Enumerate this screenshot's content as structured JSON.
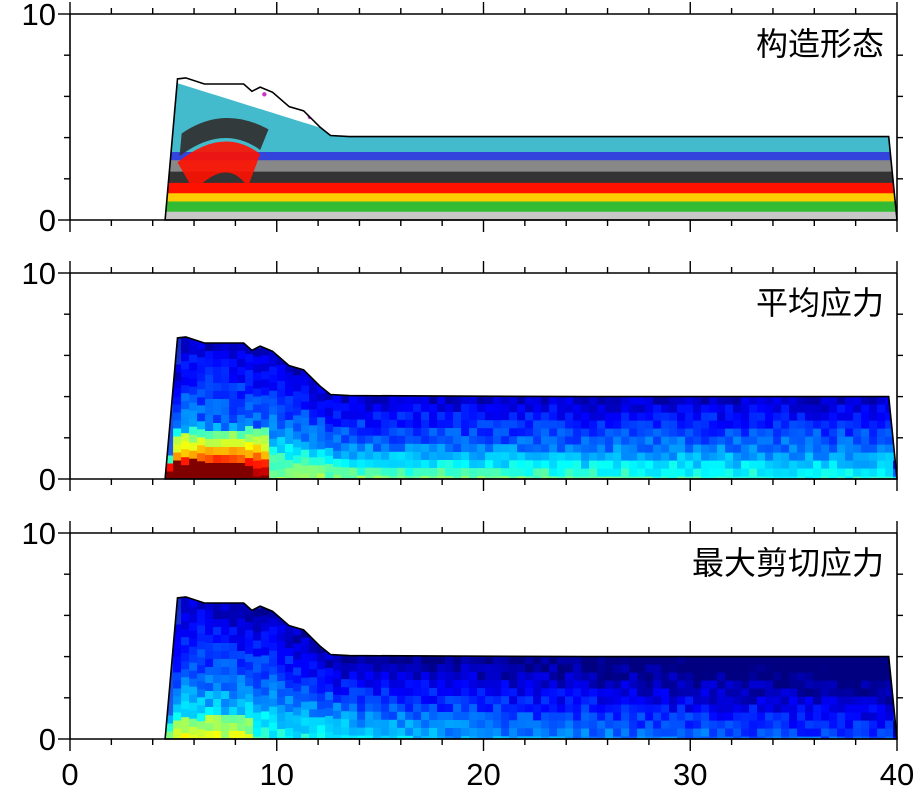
{
  "chart_data": [
    {
      "type": "heatmap",
      "title": "构造形态",
      "xlim": [
        0,
        40
      ],
      "ylim": [
        0,
        10
      ],
      "yticks": [
        "0",
        "10"
      ],
      "xtick_labels_shown": false,
      "colormap": "layered",
      "layer_colors": [
        "#c8c8c8",
        "#33bb33",
        "#ffcc00",
        "#ff1100",
        "#333333",
        "#888888",
        "#3344dd",
        "#44bbcc"
      ],
      "accent_color": "#cc33cc",
      "surface_profile": {
        "x": [
          4.6,
          5.2,
          5.6,
          6.5,
          8.4,
          8.8,
          9.2,
          9.8,
          10.6,
          11.3,
          12.1,
          12.6,
          13.5,
          25,
          35,
          39.6,
          39.8,
          40
        ],
        "y": [
          0,
          6.85,
          6.9,
          6.6,
          6.6,
          6.25,
          6.45,
          6.2,
          5.5,
          5.3,
          4.5,
          4.1,
          4.05,
          4.05,
          4.05,
          4.05,
          2.0,
          0
        ]
      }
    },
    {
      "type": "heatmap",
      "title": "平均应力",
      "xlim": [
        0,
        40
      ],
      "ylim": [
        0,
        10
      ],
      "yticks": [
        "0",
        "10"
      ],
      "xtick_labels_shown": false,
      "colormap": "jet",
      "surface_profile": {
        "x": [
          4.6,
          5.2,
          5.6,
          6.5,
          8.4,
          8.8,
          9.2,
          9.8,
          10.6,
          11.3,
          12.1,
          12.6,
          13.5,
          25,
          35,
          39.6,
          39.8,
          40
        ],
        "y": [
          0,
          6.85,
          6.9,
          6.6,
          6.6,
          6.25,
          6.45,
          6.2,
          5.5,
          5.3,
          4.5,
          4.1,
          4.05,
          4.0,
          4.0,
          4.0,
          2.0,
          0
        ]
      }
    },
    {
      "type": "heatmap",
      "title": "最大剪切应力",
      "xlim": [
        0,
        40
      ],
      "ylim": [
        0,
        10
      ],
      "yticks": [
        "0",
        "10"
      ],
      "xticks": [
        "0",
        "10",
        "20",
        "30",
        "40"
      ],
      "xtick_labels_shown": true,
      "colormap": "jet",
      "surface_profile": {
        "x": [
          4.6,
          5.2,
          5.6,
          6.5,
          8.4,
          8.8,
          9.2,
          9.8,
          10.6,
          11.3,
          12.1,
          12.6,
          13.5,
          25,
          35,
          39.6,
          39.8,
          40
        ],
        "y": [
          0,
          6.85,
          6.9,
          6.6,
          6.6,
          6.25,
          6.45,
          6.2,
          5.5,
          5.3,
          4.5,
          4.1,
          4.05,
          4.0,
          4.0,
          4.0,
          2.0,
          0
        ]
      }
    }
  ]
}
